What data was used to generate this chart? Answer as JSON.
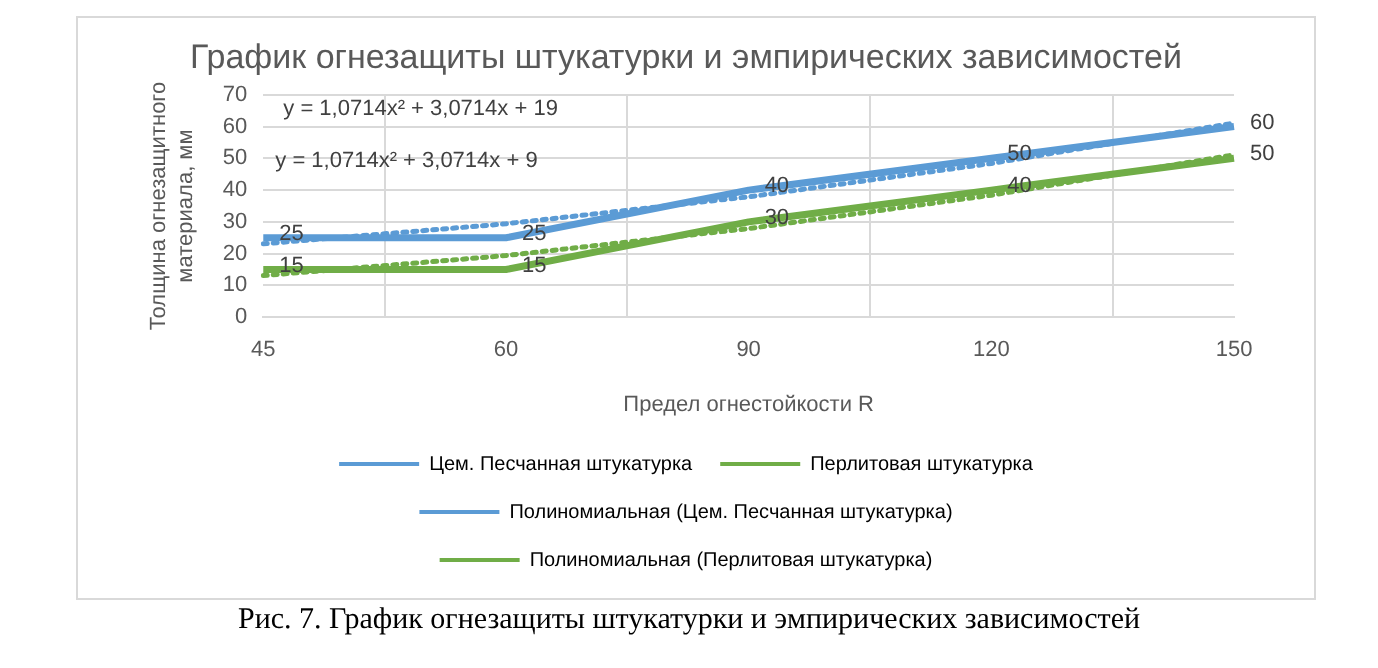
{
  "chart_data": {
    "type": "line",
    "title": "График огнезащиты штукатурки и эмпирических зависимостей",
    "xlabel": "Предел огнестойкости R",
    "ylabel": "Толщина огнезащитного материала, мм",
    "categories": [
      "45",
      "60",
      "90",
      "120",
      "150"
    ],
    "series": [
      {
        "name": "Цем. Песчанная штукатурка",
        "color": "#5b9bd5",
        "values": [
          25,
          25,
          40,
          50,
          60
        ],
        "data_labels": true
      },
      {
        "name": "Перлитовая штукатурка",
        "color": "#70ad47",
        "values": [
          15,
          15,
          30,
          40,
          50
        ],
        "data_labels": true
      },
      {
        "name": "Полиномиальная (Цем. Песчанная штукатурка)",
        "color": "#5b9bd5",
        "values": [
          23.1,
          29.4,
          37.9,
          48.4,
          61.1
        ],
        "line_style": "dotted"
      },
      {
        "name": "Полиномиальная (Перлитовая штукатурка)",
        "color": "#70ad47",
        "values": [
          13.1,
          19.4,
          27.9,
          38.4,
          51.1
        ],
        "line_style": "dotted"
      }
    ],
    "ylim": [
      0,
      70
    ],
    "yticks": [
      0,
      10,
      20,
      30,
      40,
      50,
      60,
      70
    ],
    "grid": true,
    "legend": "bottom",
    "marker": "none",
    "annotations": [
      "y = 1,0714x² + 3,0714x + 19",
      "y = 1,0714x² + 3,0714x + 9",
      "Рис. 7. График огнезащиты штукатурки и эмпирических зависимостей"
    ]
  }
}
